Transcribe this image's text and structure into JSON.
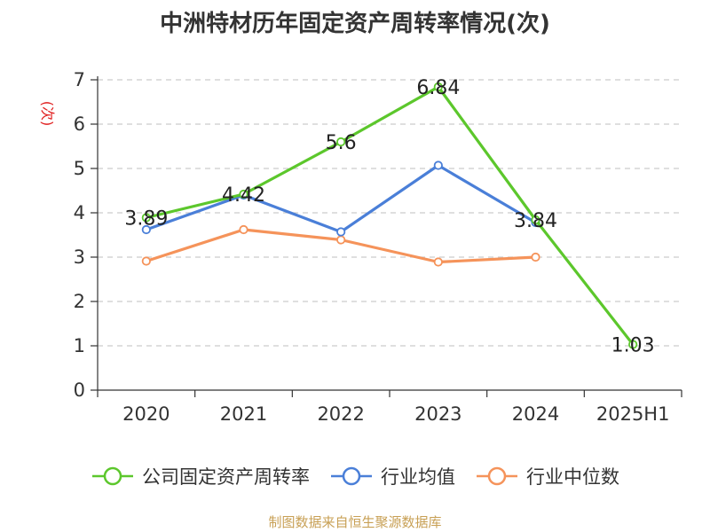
{
  "chart_data": {
    "type": "line",
    "title": "中洲特材历年固定资产周转率情况(次)",
    "ylabel": "(次)",
    "categories": [
      "2020",
      "2021",
      "2022",
      "2023",
      "2024",
      "2025H1"
    ],
    "ylim": [
      0,
      7
    ],
    "yticks": [
      "0",
      "1",
      "2",
      "3",
      "4",
      "5",
      "6",
      "7"
    ],
    "grid": true,
    "legend_position": "bottom",
    "series": [
      {
        "name": "公司固定资产周转率",
        "color": "#5cc72c",
        "values": [
          3.89,
          4.42,
          5.6,
          6.84,
          3.84,
          1.03
        ],
        "labels": [
          "3.89",
          "4.42",
          "5.6",
          "6.84",
          "3.84",
          "1.03"
        ]
      },
      {
        "name": "行业均值",
        "color": "#4a7fd8",
        "values": [
          3.62,
          4.4,
          3.57,
          5.07,
          3.78,
          null
        ]
      },
      {
        "name": "行业中位数",
        "color": "#f5935a",
        "values": [
          2.91,
          3.62,
          3.39,
          2.89,
          3.0,
          null
        ]
      }
    ]
  },
  "footer": {
    "source": "制图数据来自恒生聚源数据库"
  }
}
